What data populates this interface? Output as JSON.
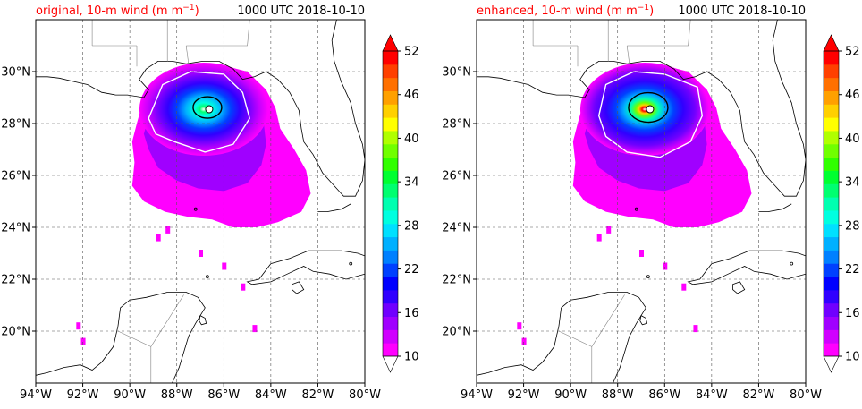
{
  "panels": [
    {
      "title_left": "original, 10-m wind (m m",
      "title_left_sup": "−1",
      "title_left_end": ")",
      "title_right": "1000 UTC 2018-10-10",
      "title_color": "#ff0000",
      "x_ticks": [
        "94°W",
        "92°W",
        "90°W",
        "88°W",
        "86°W",
        "84°W",
        "82°W",
        "80°W"
      ],
      "y_ticks": [
        "20°N",
        "22°N",
        "24°N",
        "26°N",
        "28°N",
        "30°N"
      ],
      "colorbar_ticks": [
        "10",
        "16",
        "22",
        "28",
        "34",
        "40",
        "46",
        "52"
      ],
      "peak_wind_category": "moderate"
    },
    {
      "title_left": "enhanced, 10-m wind (m m",
      "title_left_sup": "−1",
      "title_left_end": ")",
      "title_right": "1000 UTC 2018-10-10",
      "title_color": "#ff0000",
      "x_ticks": [
        "94°W",
        "92°W",
        "90°W",
        "88°W",
        "86°W",
        "84°W",
        "82°W",
        "80°W"
      ],
      "y_ticks": [
        "20°N",
        "22°N",
        "24°N",
        "26°N",
        "28°N",
        "30°N"
      ],
      "colorbar_ticks": [
        "10",
        "16",
        "22",
        "28",
        "34",
        "40",
        "46",
        "52"
      ],
      "peak_wind_category": "strong"
    }
  ],
  "colormap": [
    "#ff00ff",
    "#d000ff",
    "#a000ff",
    "#7000ff",
    "#3000ff",
    "#0000ff",
    "#0040ff",
    "#0080ff",
    "#00b0ff",
    "#00e0ff",
    "#00ffe0",
    "#00ffb0",
    "#00ff70",
    "#00ff30",
    "#30ff00",
    "#70ff00",
    "#b0ff00",
    "#ffff00",
    "#ffd000",
    "#ffa000",
    "#ff7000",
    "#ff4000",
    "#ff0000"
  ],
  "map_extent": {
    "lon": [
      -94,
      -80
    ],
    "lat": [
      18,
      32
    ]
  }
}
